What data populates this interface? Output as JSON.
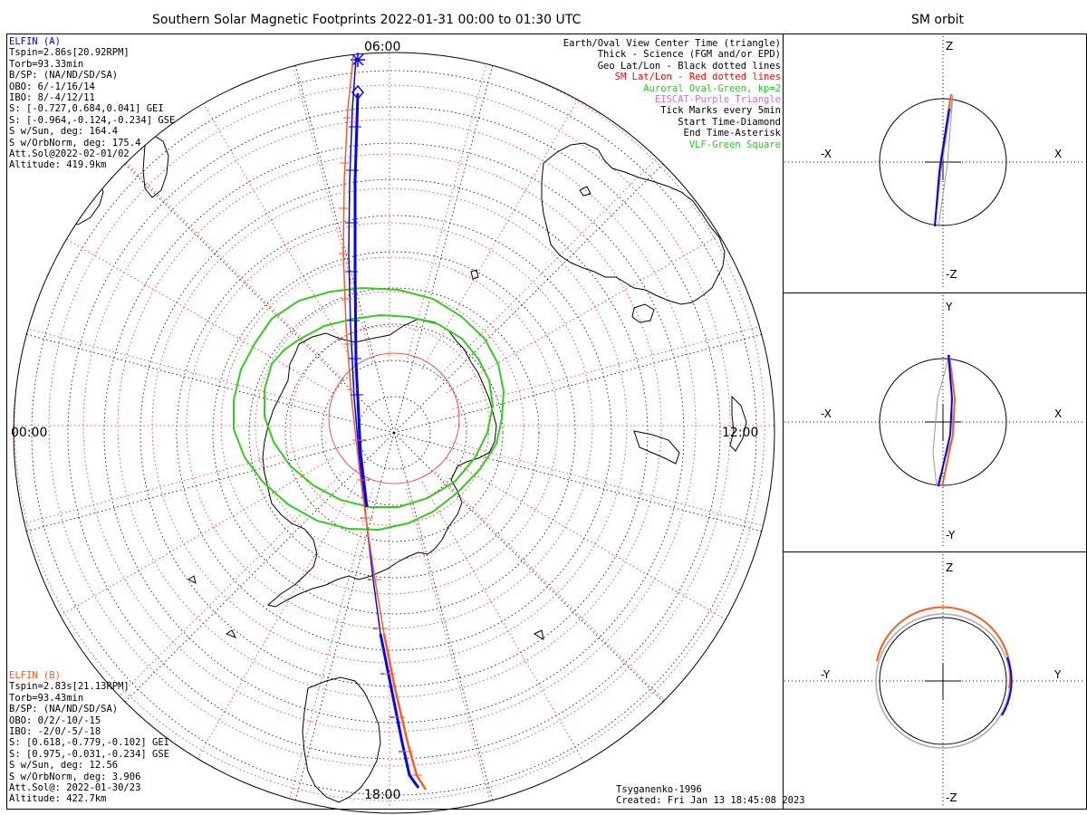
{
  "title": "Southern Solar Magnetic Footprints 2022-01-31 00:00 to 01:30 UTC",
  "orbit_title": "SM orbit",
  "hour_labels": {
    "top": "06:00",
    "left": "00:00",
    "right": "12:00",
    "bottom": "18:00"
  },
  "elfin_a": {
    "name": "ELFIN (A)",
    "color": "#0000ff",
    "lines": [
      "Tspin=2.86s[20.92RPM]",
      "Torb=93.33min",
      "B/SP: (NA/ND/SD/SA)",
      "OBO: 6/-1/16/14",
      "IBO: 8/-4/12/11",
      "S: [-0.727,0.684,0.041] GEI",
      "S: [-0.964,-0.124,-0.234] GSE",
      "S w/Sun, deg: 164.4",
      "S w/OrbNorm, deg: 175.4",
      "Att.Sol@2022-02-01/02",
      "Altitude: 419.9km"
    ]
  },
  "elfin_b": {
    "name": "ELFIN (B)",
    "color": "#ff5a1e",
    "lines": [
      "Tspin=2.83s[21.13RPM]",
      "Torb=93.43min",
      "B/SP: (NA/ND/SD/SA)",
      "OBO: 0/2/-10/-15",
      "IBO: -2/0/-5/-18",
      "S: [0.618,-0.779,-0.102] GEI",
      "S: [0.975,-0.031,-0.234] GSE",
      "S w/Sun, deg: 12.56",
      "S w/OrbNorm, deg: 3.906",
      "Att.Sol@: 2022-01-30/23",
      "Altitude: 422.7km"
    ]
  },
  "legend": [
    {
      "text": "Earth/Oval View Center Time (triangle)",
      "color": "#000000"
    },
    {
      "text": "Thick - Science (FGM and/or EPD)",
      "color": "#000000"
    },
    {
      "text": "Geo Lat/Lon - Black dotted lines",
      "color": "#000000"
    },
    {
      "text": "SM Lat/Lon - Red dotted lines",
      "color": "#ff0000"
    },
    {
      "text": "Auroral Oval-Green, kp=2",
      "color": "#22cc22"
    },
    {
      "text": "EISCAT-Purple Triangle",
      "color": "#dd66dd"
    },
    {
      "text": "Tick Marks every 5min",
      "color": "#000000"
    },
    {
      "text": "Start Time-Diamond",
      "color": "#000000"
    },
    {
      "text": "End Time-Asterisk",
      "color": "#000000"
    },
    {
      "text": "VLF-Green Square",
      "color": "#22cc22"
    }
  ],
  "credit": "Tsyganenko-1996",
  "created": "Created: Fri Jan 13 18:45:08 2023",
  "panels": [
    {
      "top": "Z",
      "bottom": "-Z",
      "left": "-X",
      "right": "X"
    },
    {
      "top": "Y",
      "bottom": "-Y",
      "left": "-X",
      "right": "X"
    },
    {
      "top": "Z",
      "bottom": "-Z",
      "left": "-Y",
      "right": "Y"
    }
  ]
}
